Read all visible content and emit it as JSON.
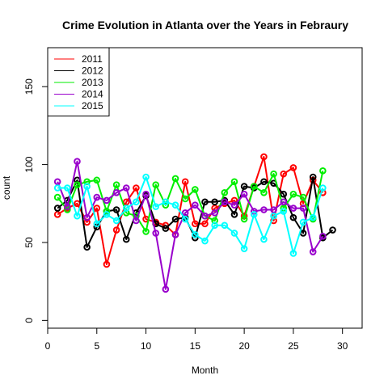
{
  "chart_data": {
    "type": "line",
    "title": "Crime Evolution in Atlanta over the Years in Febraury",
    "xlabel": "Month",
    "ylabel": "count",
    "xlim": [
      0,
      32
    ],
    "ylim": [
      -5,
      175
    ],
    "xticks": [
      0,
      5,
      10,
      15,
      20,
      25,
      30
    ],
    "yticks": [
      0,
      50,
      100,
      150
    ],
    "grid": false,
    "legend_position": "top-left",
    "series": [
      {
        "name": "2011",
        "color": "#ff0000",
        "x": [
          1,
          2,
          3,
          4,
          5,
          6,
          7,
          8,
          9,
          10,
          11,
          12,
          13,
          14,
          15,
          16,
          17,
          18,
          19,
          20,
          21,
          22,
          23,
          24,
          25,
          26,
          27,
          28
        ],
        "y": [
          68,
          72,
          75,
          63,
          72,
          36,
          58,
          76,
          85,
          65,
          63,
          61,
          55,
          89,
          62,
          62,
          72,
          75,
          77,
          67,
          86,
          105,
          64,
          94,
          98,
          75,
          90,
          82
        ]
      },
      {
        "name": "2012",
        "color": "#000000",
        "x": [
          1,
          2,
          3,
          4,
          5,
          6,
          7,
          8,
          9,
          10,
          11,
          12,
          13,
          14,
          15,
          16,
          17,
          18,
          19,
          20,
          21,
          22,
          23,
          24,
          25,
          26,
          27,
          28,
          29
        ],
        "y": [
          72,
          77,
          90,
          47,
          60,
          70,
          71,
          52,
          69,
          80,
          62,
          59,
          65,
          66,
          53,
          76,
          76,
          77,
          68,
          86,
          85,
          89,
          88,
          81,
          66,
          56,
          92,
          53,
          58
        ]
      },
      {
        "name": "2013",
        "color": "#00ee00",
        "x": [
          1,
          2,
          3,
          4,
          5,
          6,
          7,
          8,
          9,
          10,
          11,
          12,
          13,
          14,
          15,
          16,
          17,
          18,
          19,
          20,
          21,
          22,
          23,
          24,
          25,
          26,
          27,
          28
        ],
        "y": [
          79,
          71,
          87,
          89,
          90,
          70,
          87,
          69,
          67,
          57,
          87,
          74,
          91,
          78,
          84,
          67,
          64,
          82,
          89,
          65,
          86,
          82,
          94,
          72,
          81,
          79,
          65,
          96
        ]
      },
      {
        "name": "2014",
        "color": "#9900cc",
        "x": [
          1,
          2,
          3,
          4,
          5,
          6,
          7,
          8,
          9,
          10,
          11,
          12,
          13,
          14,
          15,
          16,
          17,
          18,
          19,
          20,
          21,
          22,
          23,
          24,
          25,
          26,
          27,
          28
        ],
        "y": [
          89,
          73,
          102,
          66,
          79,
          77,
          82,
          85,
          64,
          81,
          56,
          20,
          55,
          69,
          74,
          67,
          69,
          76,
          74,
          81,
          70,
          71,
          71,
          76,
          72,
          72,
          44,
          54
        ]
      },
      {
        "name": "2015",
        "color": "#00ffff",
        "x": [
          1,
          2,
          3,
          4,
          5,
          6,
          7,
          8,
          9,
          10,
          11,
          12,
          13,
          14,
          15,
          16,
          17,
          18,
          19,
          20,
          21,
          22,
          23,
          24,
          25,
          26,
          27,
          28
        ],
        "y": [
          85,
          85,
          67,
          86,
          62,
          68,
          64,
          72,
          76,
          92,
          73,
          76,
          74,
          65,
          55,
          51,
          61,
          61,
          56,
          46,
          68,
          52,
          67,
          70,
          43,
          63,
          66,
          85
        ]
      }
    ]
  }
}
